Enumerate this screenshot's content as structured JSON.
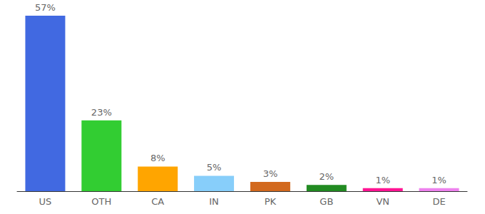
{
  "chart_data": {
    "type": "bar",
    "categories": [
      "US",
      "OTH",
      "CA",
      "IN",
      "PK",
      "GB",
      "VN",
      "DE"
    ],
    "values": [
      57,
      23,
      8,
      5,
      3,
      2,
      1,
      1
    ],
    "value_labels": [
      "57%",
      "23%",
      "8%",
      "5%",
      "3%",
      "2%",
      "1%",
      "1%"
    ],
    "colors": [
      "#4169e1",
      "#32cd32",
      "#ffa500",
      "#87cefa",
      "#d2691e",
      "#228b22",
      "#ff1493",
      "#ee82ee"
    ],
    "ylim": [
      0,
      57
    ],
    "grid": false,
    "data_labels": true,
    "tick_labels": "x"
  }
}
